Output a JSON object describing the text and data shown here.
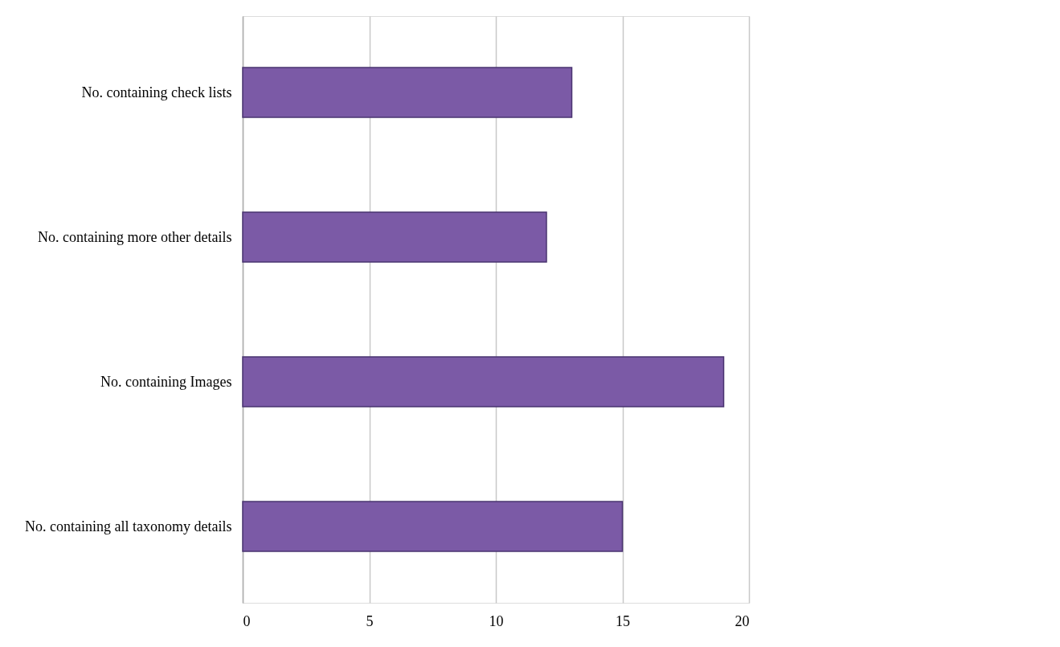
{
  "chart_data": {
    "type": "bar",
    "orientation": "horizontal",
    "categories": [
      "No. containing check lists",
      "No. containing more other details",
      "No. containing Images",
      "No. containing all taxonomy details"
    ],
    "values": [
      13,
      12,
      19,
      15
    ],
    "color": "#7b5aa6",
    "xlim": [
      0,
      20
    ],
    "xticks": [
      0,
      5,
      10,
      15,
      20
    ],
    "grid": "x"
  }
}
